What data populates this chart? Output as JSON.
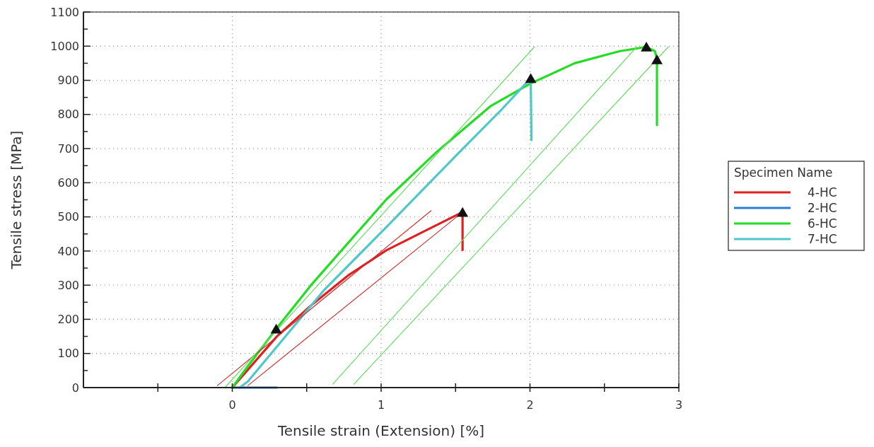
{
  "chart_data": {
    "type": "line",
    "xlabel": "Tensile strain (Extension) [%]",
    "ylabel": "Tensile stress [MPa]",
    "legend_title": "Specimen Name",
    "legend": "right",
    "grid": true,
    "line_style": "solid",
    "marker": "none",
    "xlim": [
      -1,
      3
    ],
    "xticks": [
      {
        "value": -0.5,
        "label": null
      },
      0,
      {
        "value": 0.5,
        "label": null
      },
      1,
      {
        "value": 1.5,
        "label": null
      },
      2,
      {
        "value": 2.5,
        "label": null
      },
      3
    ],
    "ylim": [
      0,
      1100
    ],
    "yticks": [
      0,
      {
        "value": 50,
        "label": null
      },
      100,
      {
        "value": 150,
        "label": null
      },
      200,
      {
        "value": 250,
        "label": null
      },
      300,
      {
        "value": 350,
        "label": null
      },
      400,
      {
        "value": 450,
        "label": null
      },
      500,
      {
        "value": 550,
        "label": null
      },
      600,
      {
        "value": 650,
        "label": null
      },
      700,
      {
        "value": 750,
        "label": null
      },
      800,
      {
        "value": 850,
        "label": null
      },
      900,
      {
        "value": 950,
        "label": null
      },
      1000,
      {
        "value": 1050,
        "label": null
      },
      1100
    ],
    "series": [
      {
        "name": "4-HC",
        "color": "#e02020",
        "x": [
          0,
          0.1,
          0.3,
          0.527,
          0.78,
          1.035,
          1.3,
          1.547,
          1.547
        ],
        "values": [
          0,
          50,
          150,
          240,
          329,
          402,
          460,
          514,
          403
        ]
      },
      {
        "name": "2-HC",
        "color": "#2a7fd4",
        "x": [
          0,
          0.3
        ],
        "values": [
          0,
          0
        ]
      },
      {
        "name": "6-HC",
        "color": "#22dd22",
        "x": [
          0,
          0.1,
          0.295,
          0.527,
          1.035,
          1.378,
          1.734,
          2.005,
          2.3,
          2.6,
          2.782,
          2.84,
          2.853,
          2.853
        ],
        "values": [
          0,
          60,
          172,
          299,
          551,
          692,
          824,
          891,
          950,
          985,
          998,
          985,
          961,
          769
        ]
      },
      {
        "name": "7-HC",
        "color": "#50c8c8",
        "x": [
          0.05,
          0.105,
          0.613,
          1.035,
          1.547,
          1.8,
          2.005,
          2.01
        ],
        "values": [
          0,
          18,
          284,
          470,
          699,
          810,
          906,
          725
        ]
      },
      {
        "color": "#d03030",
        "x": [
          -0.1,
          1.335
        ],
        "values": [
          6,
          518
        ]
      },
      {
        "color": "#d03030",
        "x": [
          0.105,
          1.547
        ],
        "values": [
          6,
          514
        ]
      },
      {
        "color": "#66dd66",
        "x": [
          -0.05,
          2.03
        ],
        "values": [
          0,
          998
        ]
      },
      {
        "color": "#66dd66",
        "x": [
          0.675,
          2.717
        ],
        "values": [
          10,
          998
        ]
      },
      {
        "color": "#66dd66",
        "x": [
          0.817,
          2.93
        ],
        "values": [
          10,
          998
        ]
      },
      {
        "type": "scatter",
        "marker": "triangle",
        "color": "#111111",
        "x": [
          0.295,
          1.547,
          2.005,
          2.782,
          2.853
        ],
        "values": [
          172,
          514,
          906,
          998,
          961
        ]
      }
    ]
  }
}
